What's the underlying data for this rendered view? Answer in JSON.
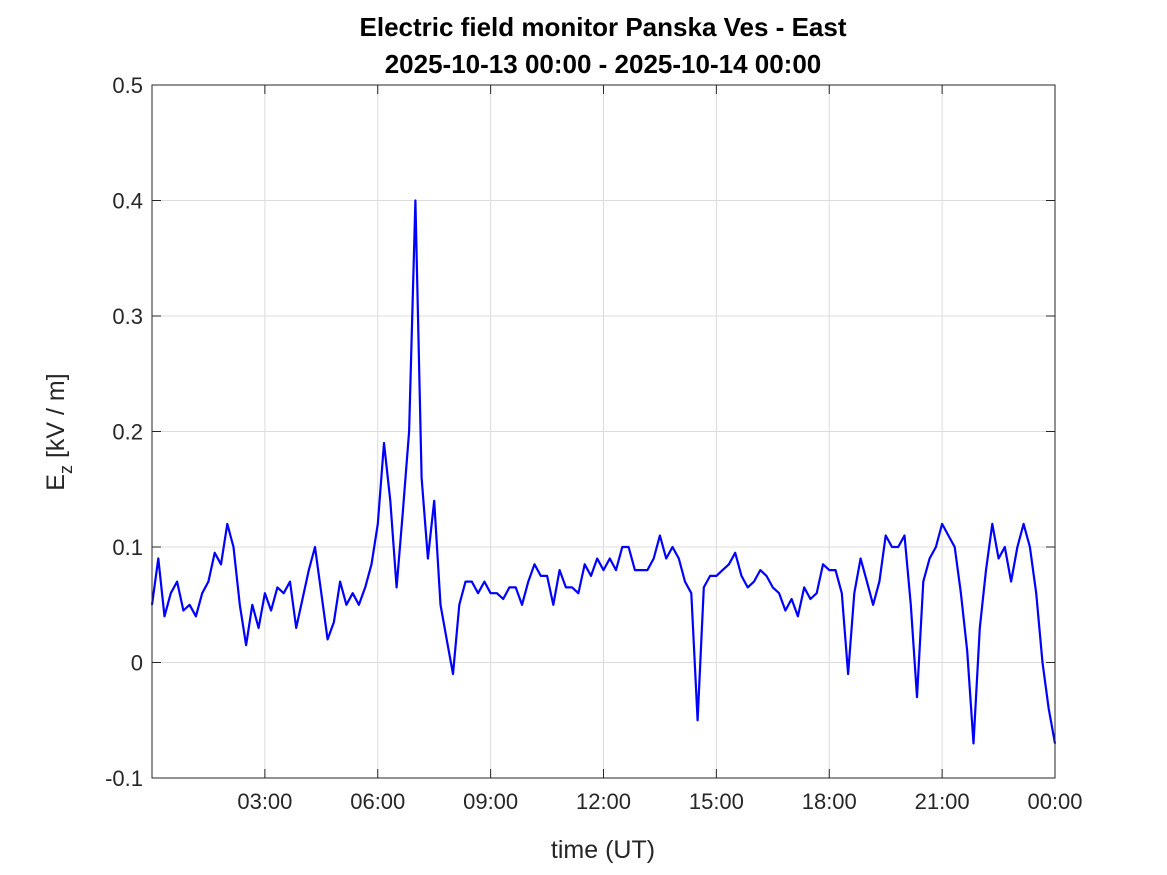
{
  "chart_data": {
    "type": "line",
    "title": "Electric field monitor Panska Ves - East",
    "subtitle": "2025-10-13 00:00 - 2025-10-14 00:00",
    "xlabel": "time (UT)",
    "ylabel_main": "E",
    "ylabel_sub": "z",
    "ylabel_unit": " [kV / m]",
    "xlim": [
      "00:00",
      "24:00"
    ],
    "ylim": [
      -0.1,
      0.5
    ],
    "x_ticks": [
      {
        "t": "00:00",
        "label": ""
      },
      {
        "t": "03:00",
        "label": "03:00"
      },
      {
        "t": "06:00",
        "label": "06:00"
      },
      {
        "t": "09:00",
        "label": "09:00"
      },
      {
        "t": "12:00",
        "label": "12:00"
      },
      {
        "t": "15:00",
        "label": "15:00"
      },
      {
        "t": "18:00",
        "label": "18:00"
      },
      {
        "t": "21:00",
        "label": "21:00"
      },
      {
        "t": "24:00",
        "label": "00:00"
      }
    ],
    "y_ticks": [
      {
        "v": -0.1,
        "label": "-0.1"
      },
      {
        "v": 0,
        "label": "0"
      },
      {
        "v": 0.1,
        "label": "0.1"
      },
      {
        "v": 0.2,
        "label": "0.2"
      },
      {
        "v": 0.3,
        "label": "0.3"
      },
      {
        "v": 0.4,
        "label": "0.4"
      },
      {
        "v": 0.5,
        "label": "0.5"
      }
    ],
    "grid": true,
    "line_color": "#0000ff",
    "x": [
      "00:00",
      "00:10",
      "00:20",
      "00:30",
      "00:40",
      "00:50",
      "01:00",
      "01:10",
      "01:20",
      "01:30",
      "01:40",
      "01:50",
      "02:00",
      "02:10",
      "02:20",
      "02:30",
      "02:40",
      "02:50",
      "03:00",
      "03:10",
      "03:20",
      "03:30",
      "03:40",
      "03:50",
      "04:00",
      "04:10",
      "04:20",
      "04:30",
      "04:40",
      "04:50",
      "05:00",
      "05:10",
      "05:20",
      "05:30",
      "05:40",
      "05:50",
      "06:00",
      "06:10",
      "06:20",
      "06:30",
      "06:40",
      "06:50",
      "07:00",
      "07:10",
      "07:20",
      "07:30",
      "07:40",
      "07:50",
      "08:00",
      "08:10",
      "08:20",
      "08:30",
      "08:40",
      "08:50",
      "09:00",
      "09:10",
      "09:20",
      "09:30",
      "09:40",
      "09:50",
      "10:00",
      "10:10",
      "10:20",
      "10:30",
      "10:40",
      "10:50",
      "11:00",
      "11:10",
      "11:20",
      "11:30",
      "11:40",
      "11:50",
      "12:00",
      "12:10",
      "12:20",
      "12:30",
      "12:40",
      "12:50",
      "13:00",
      "13:10",
      "13:20",
      "13:30",
      "13:40",
      "13:50",
      "14:00",
      "14:10",
      "14:20",
      "14:30",
      "14:40",
      "14:50",
      "15:00",
      "15:10",
      "15:20",
      "15:30",
      "15:40",
      "15:50",
      "16:00",
      "16:10",
      "16:20",
      "16:30",
      "16:40",
      "16:50",
      "17:00",
      "17:10",
      "17:20",
      "17:30",
      "17:40",
      "17:50",
      "18:00",
      "18:10",
      "18:20",
      "18:30",
      "18:40",
      "18:50",
      "19:00",
      "19:10",
      "19:20",
      "19:30",
      "19:40",
      "19:50",
      "20:00",
      "20:10",
      "20:20",
      "20:30",
      "20:40",
      "20:50",
      "21:00",
      "21:10",
      "21:20",
      "21:30",
      "21:40",
      "21:50",
      "22:00",
      "22:10",
      "22:20",
      "22:30",
      "22:40",
      "22:50",
      "23:00",
      "23:10",
      "23:20",
      "23:30",
      "23:40",
      "23:50",
      "24:00"
    ],
    "values": [
      0.05,
      0.09,
      0.04,
      0.06,
      0.07,
      0.045,
      0.05,
      0.04,
      0.06,
      0.07,
      0.095,
      0.085,
      0.12,
      0.1,
      0.05,
      0.015,
      0.05,
      0.03,
      0.06,
      0.045,
      0.065,
      0.06,
      0.07,
      0.03,
      0.055,
      0.08,
      0.1,
      0.06,
      0.02,
      0.035,
      0.07,
      0.05,
      0.06,
      0.05,
      0.065,
      0.085,
      0.12,
      0.19,
      0.14,
      0.065,
      0.13,
      0.2,
      0.4,
      0.16,
      0.09,
      0.14,
      0.05,
      0.02,
      -0.01,
      0.05,
      0.07,
      0.07,
      0.06,
      0.07,
      0.06,
      0.06,
      0.055,
      0.065,
      0.065,
      0.05,
      0.07,
      0.085,
      0.075,
      0.075,
      0.05,
      0.08,
      0.065,
      0.065,
      0.06,
      0.085,
      0.075,
      0.09,
      0.08,
      0.09,
      0.08,
      0.1,
      0.1,
      0.08,
      0.08,
      0.08,
      0.09,
      0.11,
      0.09,
      0.1,
      0.09,
      0.07,
      0.06,
      -0.05,
      0.065,
      0.075,
      0.075,
      0.08,
      0.085,
      0.095,
      0.075,
      0.065,
      0.07,
      0.08,
      0.075,
      0.065,
      0.06,
      0.045,
      0.055,
      0.04,
      0.065,
      0.055,
      0.06,
      0.085,
      0.08,
      0.08,
      0.06,
      -0.01,
      0.06,
      0.09,
      0.07,
      0.05,
      0.07,
      0.11,
      0.1,
      0.1,
      0.11,
      0.05,
      -0.03,
      0.07,
      0.09,
      0.1,
      0.12,
      0.11,
      0.1,
      0.06,
      0.01,
      -0.07,
      0.03,
      0.08,
      0.12,
      0.09,
      0.1,
      0.07,
      0.1,
      0.12,
      0.1,
      0.06,
      0.0,
      -0.04,
      -0.07
    ]
  }
}
